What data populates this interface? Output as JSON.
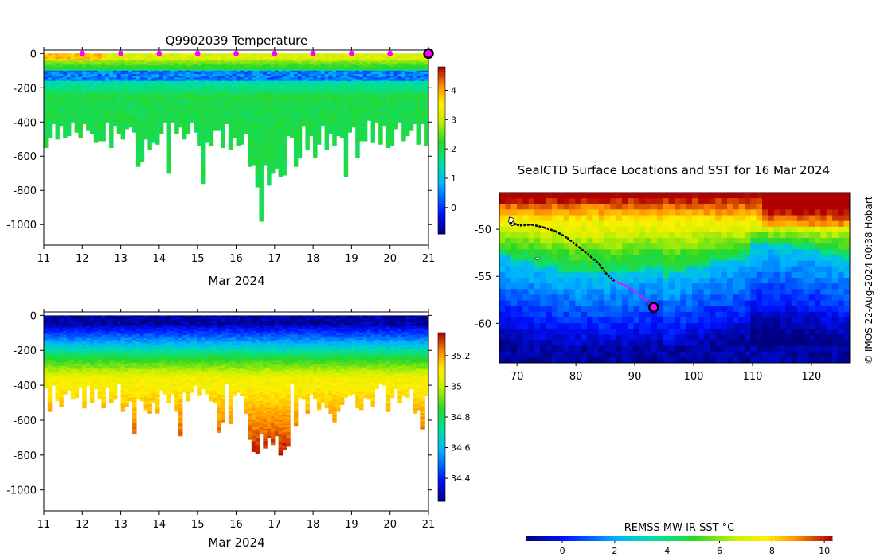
{
  "chart_data": [
    {
      "type": "heatmap",
      "id": "temperature-section",
      "title": "Q9902039  Temperature",
      "xlabel": "Mar 2024",
      "ylabel": "",
      "xlim": [
        11,
        21
      ],
      "ylim": [
        -1120,
        20
      ],
      "x_ticks": [
        11,
        12,
        13,
        14,
        15,
        16,
        17,
        18,
        19,
        20,
        21
      ],
      "y_ticks": [
        0,
        -200,
        -400,
        -600,
        -800,
        -1000
      ],
      "colorbar": {
        "min": -0.9,
        "max": 4.8,
        "ticks": [
          0,
          1,
          2,
          3,
          4
        ]
      },
      "markers": {
        "x": [
          12,
          13,
          14,
          15,
          16,
          17,
          18,
          19,
          20
        ],
        "y": 0,
        "color": "#ff00ff"
      },
      "last_profile_marker": {
        "x": 21,
        "y": 0,
        "color": "#ff00ff"
      }
    },
    {
      "type": "heatmap",
      "id": "salinity-section",
      "title": "",
      "xlabel": "Mar 2024",
      "ylabel": "",
      "xlim": [
        11,
        21
      ],
      "ylim": [
        -1120,
        20
      ],
      "x_ticks": [
        11,
        12,
        13,
        14,
        15,
        16,
        17,
        18,
        19,
        20,
        21
      ],
      "y_ticks": [
        0,
        -200,
        -400,
        -600,
        -800,
        -1000
      ],
      "colorbar": {
        "min": 34.25,
        "max": 35.35,
        "ticks": [
          34.4,
          34.6,
          34.8,
          35,
          35.2
        ]
      }
    },
    {
      "type": "heatmap",
      "id": "sst-map",
      "title": "SealCTD Surface Locations and SST for 16 Mar 2024",
      "xlim": [
        67,
        126.5
      ],
      "ylim": [
        -64.2,
        -46.1
      ],
      "x_ticks": [
        70,
        80,
        90,
        100,
        110,
        120
      ],
      "y_ticks": [
        -50,
        -55,
        -60
      ],
      "track": {
        "lon": [
          68.8,
          70.5,
          72.5,
          74.5,
          76.5,
          78.5,
          80.5,
          82.5,
          84.0,
          85.0,
          86.5,
          88.5,
          90.5,
          92.0,
          93.2
        ],
        "lat": [
          -49.3,
          -49.6,
          -49.5,
          -49.8,
          -50.2,
          -50.9,
          -51.9,
          -52.9,
          -53.7,
          -54.6,
          -55.5,
          -56.0,
          -56.8,
          -57.6,
          -58.3
        ]
      },
      "track_recent_start_index": 10,
      "last_position": {
        "lon": 93.2,
        "lat": -58.3
      },
      "colorbar": {
        "label": "REMSS MW-IR SST °C",
        "min": -1.4,
        "max": 10.3,
        "ticks": [
          0,
          2,
          4,
          6,
          8,
          10
        ]
      }
    }
  ],
  "credit": "© IMOS 22-Aug-2024 00:38 Hobart",
  "colors": {
    "marker": "#ff00ff",
    "marker_outline": "#000000",
    "track": "#000000",
    "track_recent": "#ff00ff"
  }
}
